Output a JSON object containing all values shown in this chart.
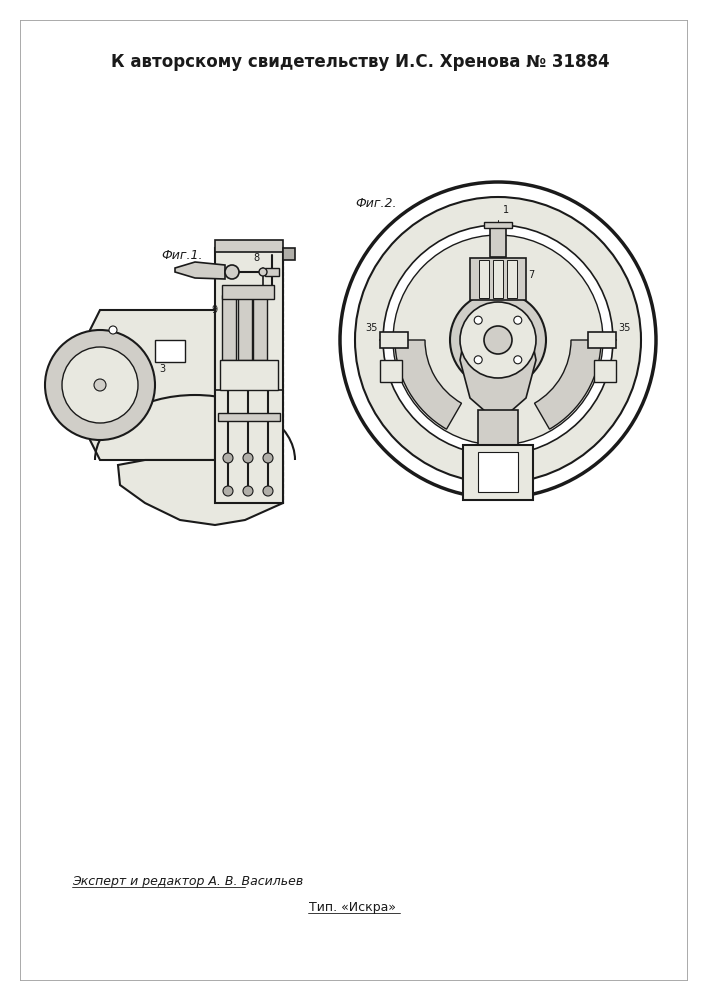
{
  "title": "К авторскому свидетельству И.С. Хренова № 31884",
  "footer_expert": "Эксперт и редактор А. В. Васильев",
  "footer_tip": "Тип. «Искра»",
  "fig1_label": "Фиг.1.",
  "fig2_label": "Фиг.2.",
  "bg_color": "#ffffff",
  "line_color": "#1a1a1a",
  "fill_light": "#e8e8e0",
  "fill_mid": "#d0cec8",
  "fill_dark": "#b0aea8",
  "title_fontsize": 12,
  "label_fontsize": 9,
  "footer_fontsize": 9
}
